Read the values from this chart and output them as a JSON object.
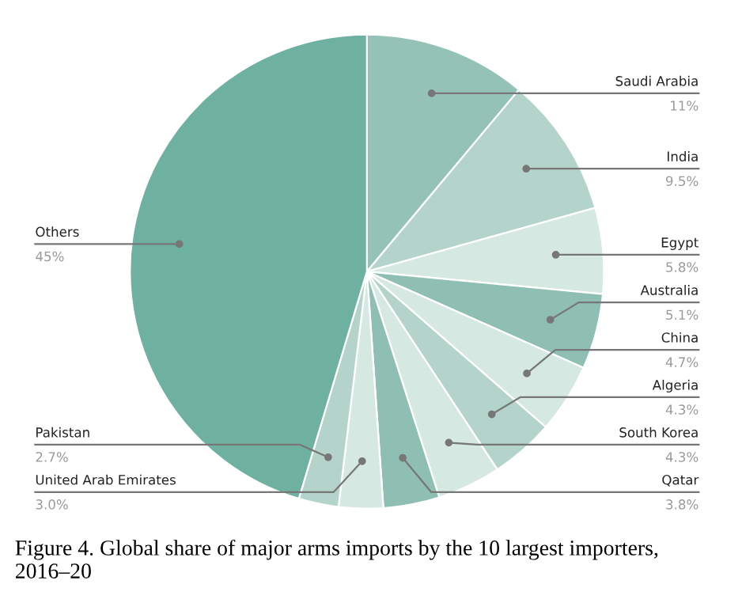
{
  "chart_data": {
    "type": "pie",
    "title": "Figure 4. Global share of major arms imports by the 10 largest importers, 2016–20",
    "categories": [
      "Saudi Arabia",
      "India",
      "Egypt",
      "Australia",
      "China",
      "Algeria",
      "South Korea",
      "Qatar",
      "United Arab Emirates",
      "Pakistan",
      "Others"
    ],
    "values": [
      11,
      9.5,
      5.8,
      5.1,
      4.7,
      4.3,
      4.3,
      3.8,
      3.0,
      2.7,
      45
    ],
    "value_labels": [
      "11%",
      "9.5%",
      "5.8%",
      "5.1%",
      "4.7%",
      "4.3%",
      "4.3%",
      "3.8%",
      "3.0%",
      "2.7%",
      "45%"
    ],
    "colors": [
      "#94c2b6",
      "#b4d3ca",
      "#d5e8e2",
      "#8fbfb2",
      "#d5e8e2",
      "#b4d3ca",
      "#d5e8e2",
      "#8fbfb2",
      "#d5e8e2",
      "#b4d3ca",
      "#6fb1a1"
    ],
    "legend": false
  }
}
